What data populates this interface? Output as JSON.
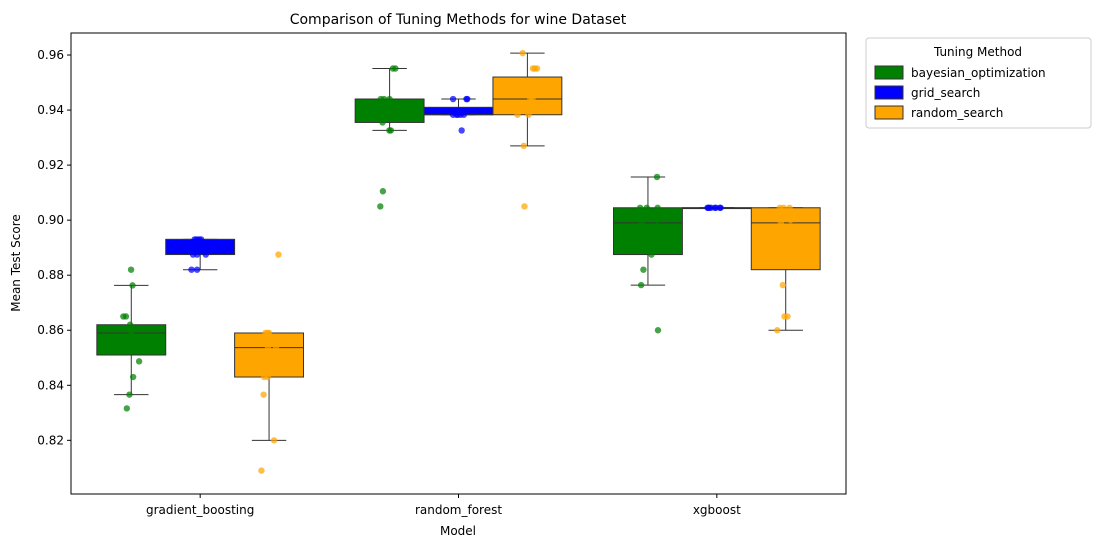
{
  "chart_data": {
    "type": "box",
    "title": "Comparison of Tuning Methods for wine Dataset",
    "xlabel": "Model",
    "ylabel": "Mean Test Score",
    "categories": [
      "gradient_boosting",
      "random_forest",
      "xgboost"
    ],
    "ylim": [
      0.8005,
      0.968
    ],
    "yticks": [
      0.82,
      0.84,
      0.86,
      0.88,
      0.9,
      0.92,
      0.94,
      0.96
    ],
    "ytick_labels": [
      "0.82",
      "0.84",
      "0.86",
      "0.88",
      "0.90",
      "0.92",
      "0.94",
      "0.96"
    ],
    "grid": false,
    "legend": {
      "title": "Tuning Method",
      "placement": "outside-top-right"
    },
    "series": [
      {
        "name": "bayesian_optimization",
        "color": "#008000",
        "boxes": [
          {
            "q1": 0.851,
            "median": 0.859,
            "q3": 0.862,
            "whislo": 0.8366,
            "whishi": 0.8763,
            "points": [
              0.882,
              0.8763,
              0.865,
              0.865,
              0.862,
              0.859,
              0.856,
              0.8487,
              0.843,
              0.8366,
              0.8316
            ]
          },
          {
            "q1": 0.9355,
            "median": 0.944,
            "q3": 0.944,
            "whislo": 0.9326,
            "whishi": 0.9551,
            "points": [
              0.9551,
              0.9551,
              0.944,
              0.944,
              0.944,
              0.94,
              0.9355,
              0.9326,
              0.9326,
              0.9105,
              0.905
            ]
          },
          {
            "q1": 0.8875,
            "median": 0.899,
            "q3": 0.9045,
            "whislo": 0.8764,
            "whishi": 0.9157,
            "points": [
              0.9157,
              0.9045,
              0.9045,
              0.9045,
              0.9,
              0.899,
              0.895,
              0.89,
              0.8875,
              0.882,
              0.8764,
              0.86
            ]
          }
        ]
      },
      {
        "name": "grid_search",
        "color": "#0000ff",
        "boxes": [
          {
            "q1": 0.8875,
            "median": 0.893,
            "q3": 0.893,
            "whislo": 0.882,
            "whishi": 0.893,
            "points": [
              0.893,
              0.893,
              0.893,
              0.893,
              0.8875,
              0.8875,
              0.8875,
              0.882,
              0.882
            ]
          },
          {
            "q1": 0.9383,
            "median": 0.9383,
            "q3": 0.941,
            "whislo": 0.9383,
            "whishi": 0.944,
            "points": [
              0.944,
              0.944,
              0.944,
              0.9383,
              0.9383,
              0.9383,
              0.9383,
              0.9383,
              0.9326
            ]
          },
          {
            "q1": 0.9045,
            "median": 0.9045,
            "q3": 0.9045,
            "whislo": 0.9045,
            "whishi": 0.9045,
            "points": [
              0.9045,
              0.9045,
              0.9045,
              0.9045,
              0.9045,
              0.9045,
              0.9045,
              0.9045
            ]
          }
        ]
      },
      {
        "name": "random_search",
        "color": "#ffa500",
        "boxes": [
          {
            "q1": 0.843,
            "median": 0.8537,
            "q3": 0.859,
            "whislo": 0.82,
            "whishi": 0.859,
            "points": [
              0.8875,
              0.859,
              0.859,
              0.859,
              0.856,
              0.8537,
              0.8537,
              0.843,
              0.843,
              0.8366,
              0.82,
              0.809
            ]
          },
          {
            "q1": 0.9383,
            "median": 0.944,
            "q3": 0.952,
            "whislo": 0.927,
            "whishi": 0.9607,
            "points": [
              0.9607,
              0.9551,
              0.9551,
              0.9551,
              0.9495,
              0.9495,
              0.944,
              0.944,
              0.9383,
              0.9383,
              0.927,
              0.905
            ]
          },
          {
            "q1": 0.882,
            "median": 0.899,
            "q3": 0.9045,
            "whislo": 0.86,
            "whishi": 0.9045,
            "points": [
              0.9045,
              0.9045,
              0.9045,
              0.9,
              0.899,
              0.8875,
              0.8875,
              0.8764,
              0.865,
              0.865,
              0.86
            ]
          }
        ]
      }
    ]
  }
}
